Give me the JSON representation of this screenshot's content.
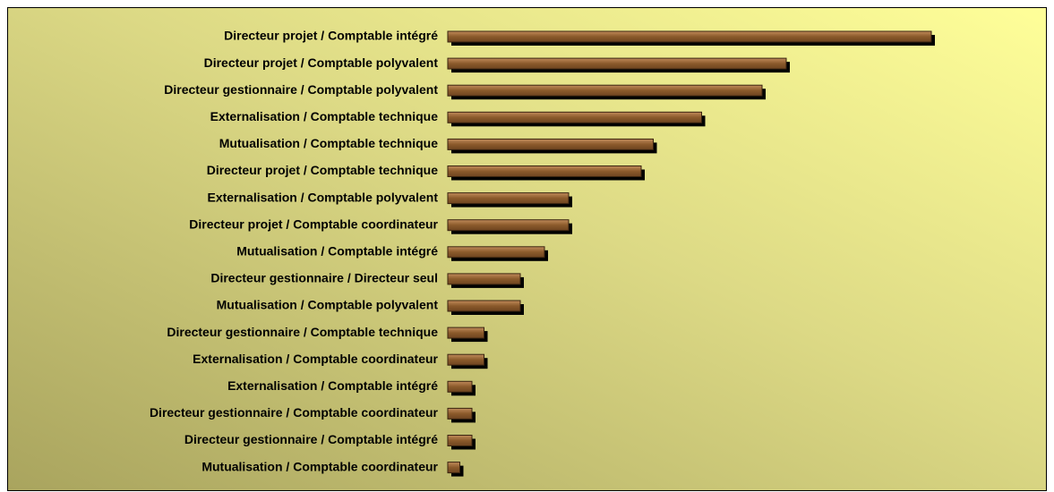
{
  "chart_data": {
    "type": "barh",
    "categories": [
      "Directeur projet / Comptable intégré",
      "Directeur projet / Comptable polyvalent",
      "Directeur gestionnaire / Comptable polyvalent",
      "Externalisation / Comptable technique",
      "Mutualisation / Comptable technique",
      "Directeur projet / Comptable technique",
      "Externalisation / Comptable polyvalent",
      "Directeur projet / Comptable coordinateur",
      "Mutualisation / Comptable intégré",
      "Directeur gestionnaire / Directeur seul",
      "Mutualisation / Comptable polyvalent",
      "Directeur gestionnaire / Comptable technique",
      "Externalisation / Comptable coordinateur",
      "Externalisation / Comptable intégré",
      "Directeur gestionnaire / Comptable coordinateur",
      "Directeur gestionnaire / Comptable intégré",
      "Mutualisation / Comptable coordinateur"
    ],
    "values": [
      40,
      28,
      26,
      21,
      17,
      16,
      10,
      10,
      8,
      6,
      6,
      3,
      3,
      2,
      2,
      2,
      1
    ],
    "color": "#8b5a2b"
  }
}
